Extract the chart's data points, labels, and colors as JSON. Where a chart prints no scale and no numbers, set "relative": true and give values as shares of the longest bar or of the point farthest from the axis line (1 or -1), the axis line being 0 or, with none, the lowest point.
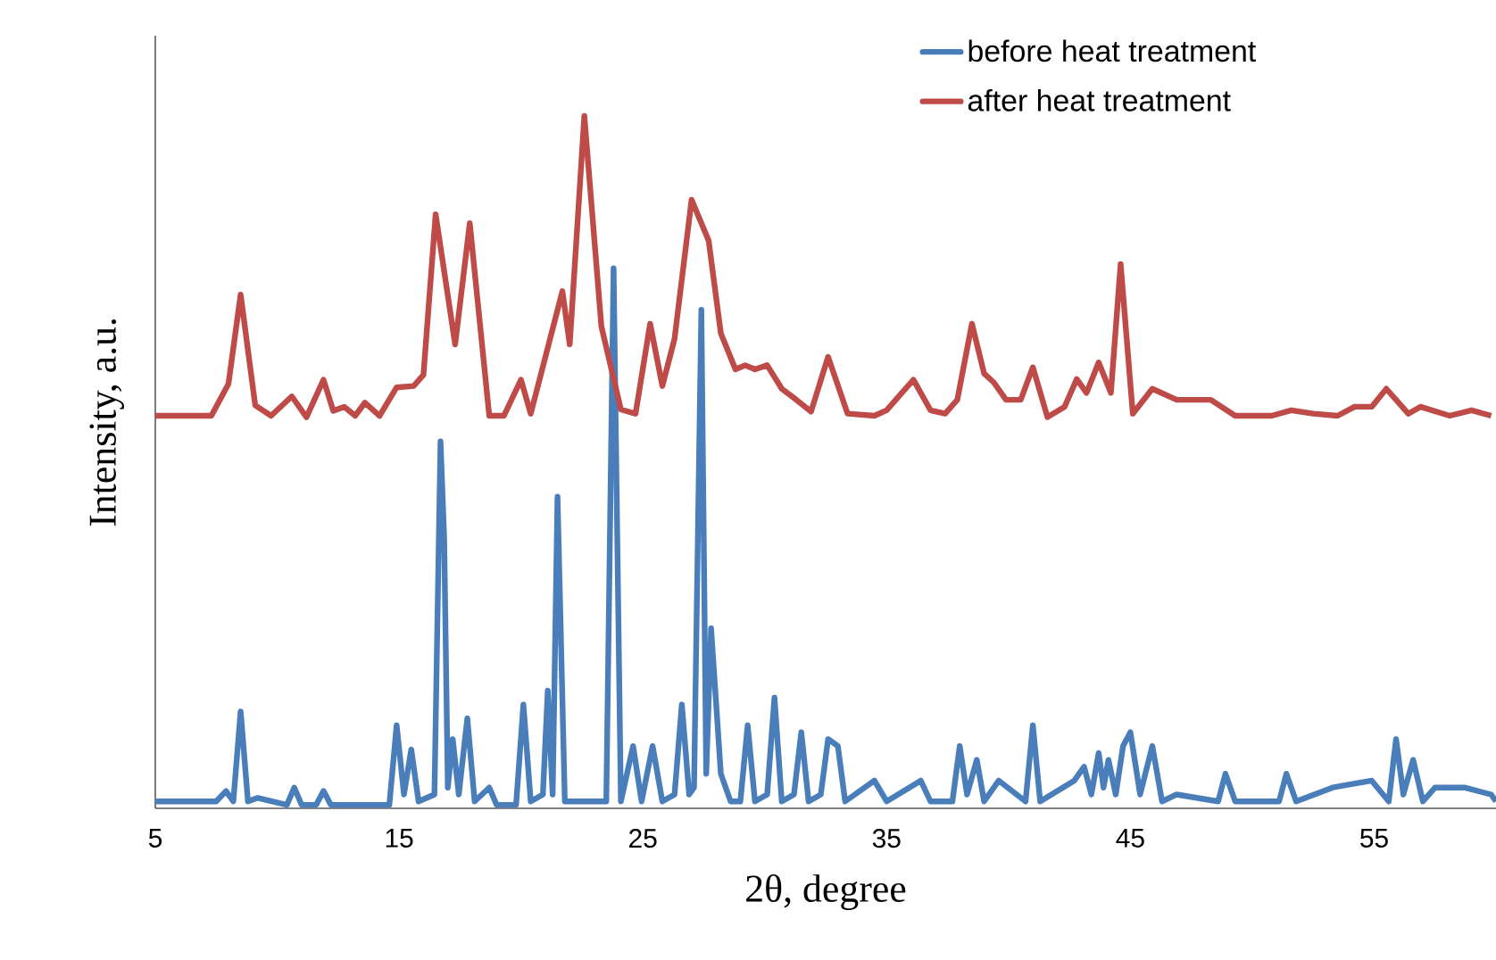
{
  "chart_data": {
    "type": "line",
    "xlabel": "2θ, degree",
    "ylabel": "Intensity, a.u.",
    "relative": true,
    "xlim": [
      5,
      60
    ],
    "xticks": [
      5,
      15,
      25,
      35,
      45,
      55
    ],
    "legend": "top right",
    "grid": false,
    "marker": "none",
    "line_style": "solid",
    "series": [
      {
        "name": "before heat treatment",
        "color": "#4a7ebb",
        "x": [
          5,
          7.5,
          7.9,
          8.2,
          8.5,
          8.8,
          9.2,
          10.4,
          10.7,
          11.0,
          11.6,
          11.9,
          12.2,
          14.6,
          14.9,
          15.2,
          15.5,
          15.8,
          16.45,
          16.7,
          16.85,
          17.0,
          17.2,
          17.45,
          17.8,
          18.1,
          18.7,
          19.0,
          19.8,
          20.1,
          20.4,
          20.9,
          21.1,
          21.3,
          21.5,
          21.8,
          23.5,
          23.8,
          24.1,
          24.6,
          24.95,
          25.4,
          25.8,
          26.3,
          26.6,
          26.9,
          27.1,
          27.4,
          27.6,
          27.8,
          28.2,
          28.6,
          29.0,
          29.3,
          29.6,
          30.1,
          30.4,
          30.7,
          31.2,
          31.5,
          31.8,
          32.3,
          32.6,
          33.0,
          33.3,
          34.5,
          35.0,
          36.4,
          36.8,
          37.7,
          38.0,
          38.3,
          38.7,
          39.0,
          39.6,
          40.7,
          41.0,
          41.3,
          42.7,
          43.1,
          43.4,
          43.7,
          43.9,
          44.1,
          44.4,
          44.7,
          45.0,
          45.4,
          45.9,
          46.3,
          46.9,
          48.6,
          48.9,
          49.3,
          51.1,
          51.4,
          51.8,
          53.3,
          54.9,
          55.6,
          55.9,
          56.2,
          56.6,
          57.0,
          57.5,
          58.7,
          59.8,
          60
        ],
        "values": [
          0.01,
          0.01,
          0.025,
          0.01,
          0.14,
          0.01,
          0.015,
          0.005,
          0.03,
          0.005,
          0.005,
          0.025,
          0.005,
          0.005,
          0.12,
          0.02,
          0.085,
          0.01,
          0.02,
          0.53,
          0.39,
          0.03,
          0.1,
          0.02,
          0.13,
          0.01,
          0.03,
          0.005,
          0.005,
          0.15,
          0.01,
          0.02,
          0.17,
          0.02,
          0.45,
          0.01,
          0.01,
          0.78,
          0.01,
          0.09,
          0.01,
          0.09,
          0.01,
          0.02,
          0.15,
          0.02,
          0.03,
          0.72,
          0.05,
          0.26,
          0.05,
          0.01,
          0.01,
          0.12,
          0.01,
          0.02,
          0.16,
          0.01,
          0.02,
          0.11,
          0.01,
          0.02,
          0.1,
          0.09,
          0.01,
          0.04,
          0.01,
          0.04,
          0.01,
          0.01,
          0.09,
          0.02,
          0.07,
          0.01,
          0.04,
          0.01,
          0.12,
          0.01,
          0.04,
          0.06,
          0.02,
          0.08,
          0.03,
          0.07,
          0.02,
          0.09,
          0.11,
          0.02,
          0.09,
          0.01,
          0.02,
          0.01,
          0.05,
          0.01,
          0.01,
          0.05,
          0.01,
          0.03,
          0.04,
          0.01,
          0.1,
          0.02,
          0.07,
          0.01,
          0.03,
          0.03,
          0.02,
          0.01
        ]
      },
      {
        "name": "after heat treatment",
        "color": "#be4b48",
        "x": [
          5,
          7.3,
          8.0,
          8.5,
          9.1,
          9.75,
          10.6,
          11.2,
          11.9,
          12.3,
          12.75,
          13.2,
          13.6,
          14.2,
          14.9,
          15.6,
          16.0,
          16.5,
          17.3,
          17.9,
          18.7,
          19.3,
          20.0,
          20.4,
          21.7,
          22.0,
          22.6,
          23.3,
          24.1,
          24.7,
          25.3,
          25.8,
          26.3,
          27.0,
          27.7,
          28.2,
          28.8,
          29.2,
          29.6,
          30.1,
          30.7,
          31.3,
          31.9,
          32.6,
          33.4,
          34.5,
          35.0,
          36.1,
          36.8,
          37.4,
          37.9,
          38.5,
          39.0,
          39.4,
          39.9,
          40.5,
          41.0,
          41.6,
          42.3,
          42.8,
          43.2,
          43.7,
          44.2,
          44.6,
          45.1,
          45.9,
          46.9,
          48.3,
          49.3,
          50.8,
          51.6,
          52.5,
          53.5,
          54.2,
          54.9,
          55.5,
          56.4,
          56.9,
          58.1,
          59.0,
          59.8
        ],
        "values": [
          0.567,
          0.567,
          0.613,
          0.742,
          0.582,
          0.567,
          0.595,
          0.565,
          0.619,
          0.574,
          0.58,
          0.567,
          0.586,
          0.567,
          0.608,
          0.61,
          0.626,
          0.858,
          0.67,
          0.845,
          0.567,
          0.567,
          0.619,
          0.57,
          0.747,
          0.67,
          1,
          0.696,
          0.576,
          0.57,
          0.7,
          0.61,
          0.678,
          0.879,
          0.82,
          0.686,
          0.634,
          0.64,
          0.634,
          0.64,
          0.606,
          0.59,
          0.573,
          0.652,
          0.57,
          0.567,
          0.575,
          0.619,
          0.575,
          0.57,
          0.59,
          0.7,
          0.628,
          0.615,
          0.59,
          0.59,
          0.637,
          0.565,
          0.58,
          0.62,
          0.6,
          0.644,
          0.6,
          0.786,
          0.57,
          0.606,
          0.59,
          0.59,
          0.567,
          0.567,
          0.575,
          0.57,
          0.567,
          0.58,
          0.58,
          0.606,
          0.57,
          0.58,
          0.567,
          0.575,
          0.567
        ]
      }
    ]
  }
}
